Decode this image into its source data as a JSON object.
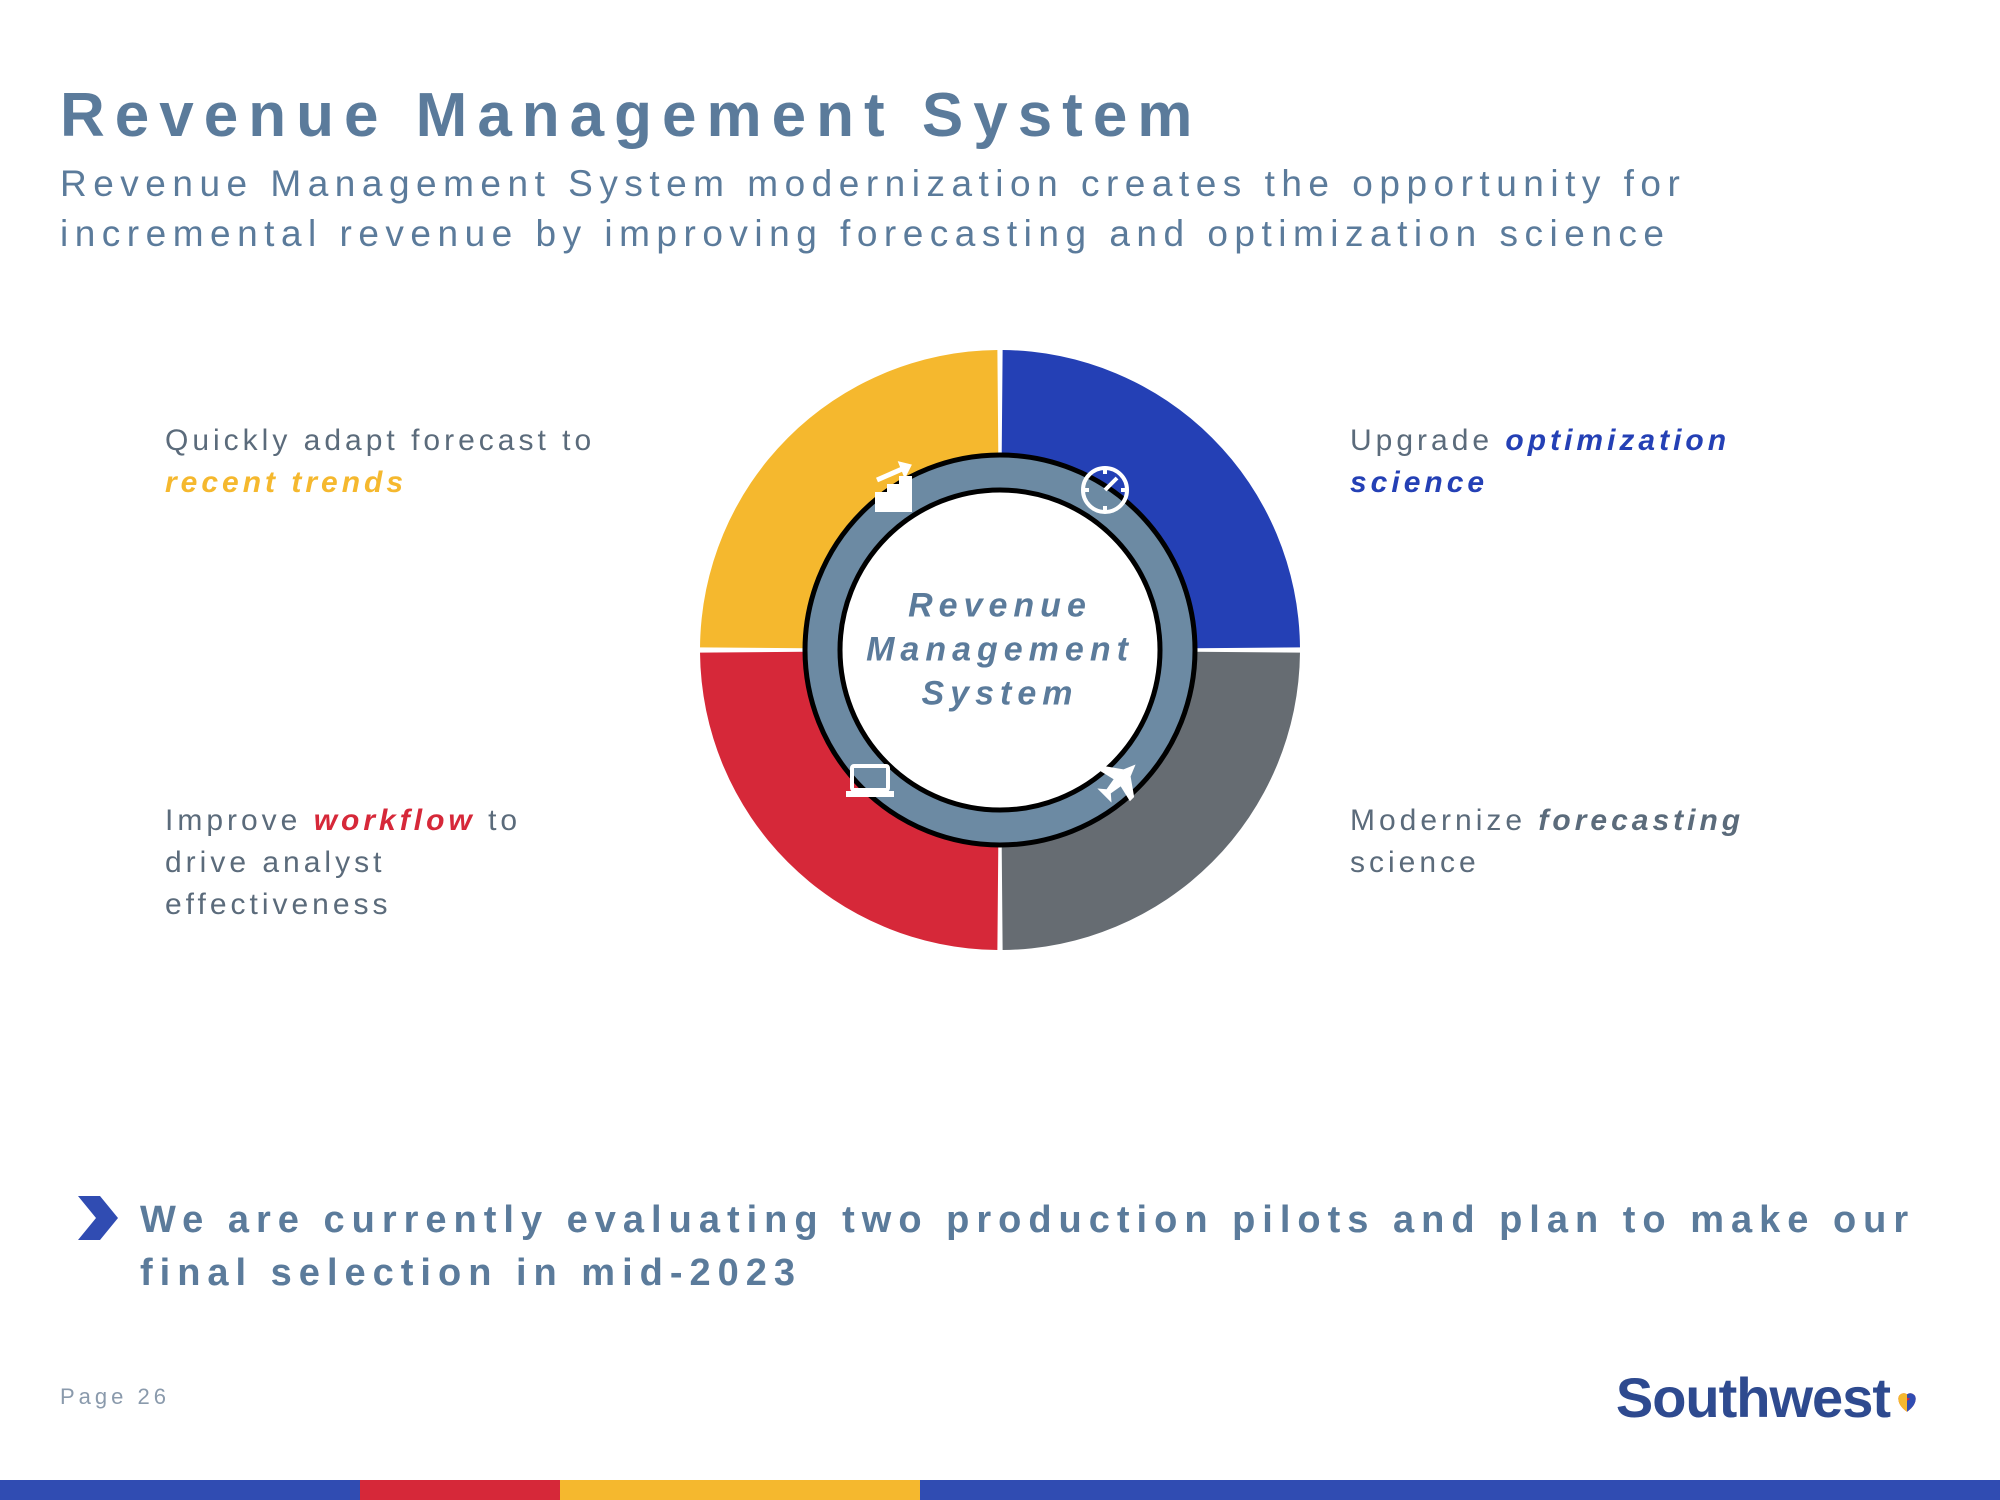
{
  "title": "Revenue Management System",
  "subtitle": "Revenue Management System modernization creates the opportunity for incremental revenue by improving forecasting and optimization science",
  "center_label_l1": "Revenue",
  "center_label_l2": "Management",
  "center_label_l3": "System",
  "donut": {
    "type": "donut-quadrant",
    "outer_radius": 300,
    "inner_ring_outer": 195,
    "inner_ring_inner": 160,
    "quadrants": [
      {
        "key": "top-left",
        "color": "#f5b82e",
        "start_deg": 180,
        "end_deg": 270,
        "icon": "chart-up"
      },
      {
        "key": "top-right",
        "color": "#2440b5",
        "start_deg": 270,
        "end_deg": 360,
        "icon": "gauge"
      },
      {
        "key": "bottom-right",
        "color": "#666c72",
        "start_deg": 0,
        "end_deg": 90,
        "icon": "plane"
      },
      {
        "key": "bottom-left",
        "color": "#d62839",
        "start_deg": 90,
        "end_deg": 180,
        "icon": "laptop"
      }
    ],
    "inner_ring_color": "#6c8aa3",
    "inner_ring_border": "#000000",
    "background": "#ffffff",
    "gap_deg": 1
  },
  "callouts": {
    "tl_a": "Quickly adapt forecast to",
    "tl_b": "recent trends",
    "tr_a": "Upgrade ",
    "tr_b": "optimization science",
    "bl_a": "Improve ",
    "bl_b": "workflow",
    "bl_c": " to drive analyst effectiveness",
    "br_a": "Modernize ",
    "br_b": "forecasting",
    "br_c": " science"
  },
  "footer_note": "We are currently evaluating two production pilots and plan to make our final selection in mid-2023",
  "page_label": "Page 26",
  "logo_text": "Southwest",
  "colors": {
    "title": "#5b7b9b",
    "yellow": "#f5b82e",
    "blue": "#2440b5",
    "gray": "#666c72",
    "red": "#d62839",
    "ring": "#6c8aa3",
    "logo": "#2e4a8f"
  },
  "bottom_bar": [
    {
      "color": "#304cb2",
      "width_pct": 18
    },
    {
      "color": "#d62839",
      "width_pct": 10
    },
    {
      "color": "#f5b82e",
      "width_pct": 18
    },
    {
      "color": "#304cb2",
      "width_pct": 54
    }
  ]
}
